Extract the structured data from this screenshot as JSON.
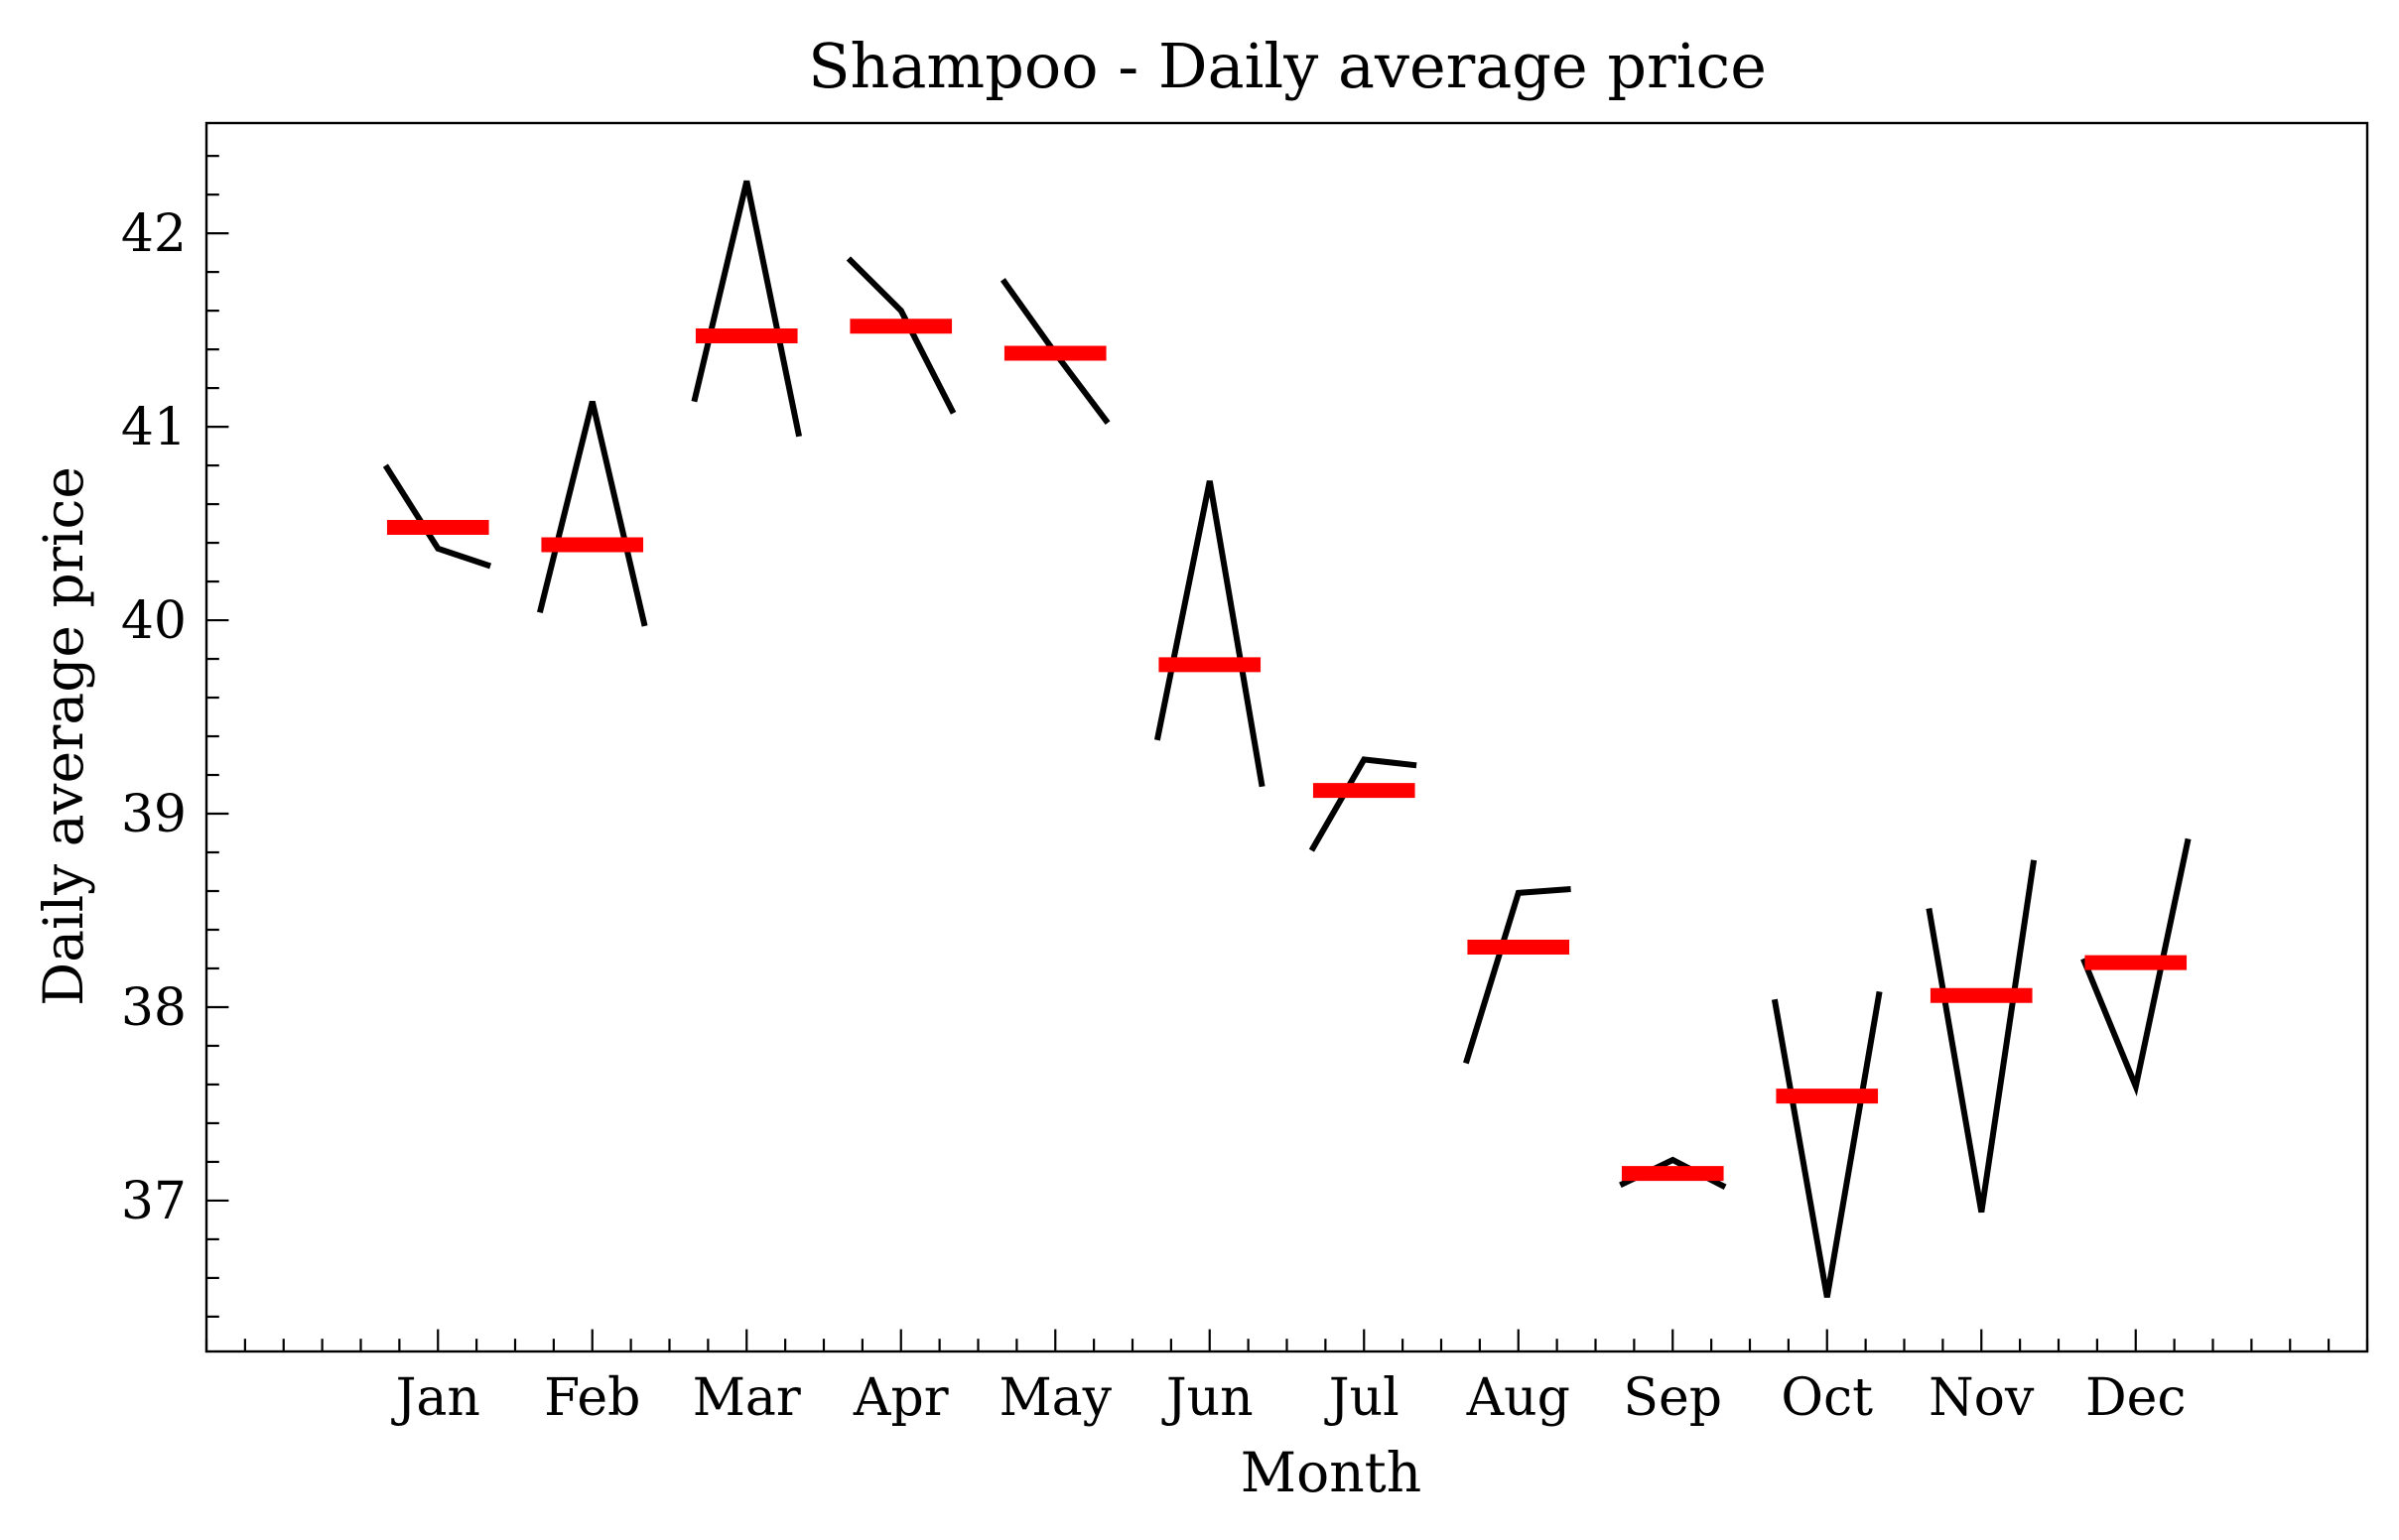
{
  "chart_data": {
    "type": "line",
    "title": "Shampoo - Daily average price",
    "xlabel": "Month",
    "ylabel": "Daily average price",
    "categories": [
      "Jan",
      "Feb",
      "Mar",
      "Apr",
      "May",
      "Jun",
      "Jul",
      "Aug",
      "Sep",
      "Oct",
      "Nov",
      "Dec"
    ],
    "yticks": [
      37,
      38,
      39,
      40,
      41,
      42
    ],
    "ylim": [
      36.22,
      42.57
    ],
    "xlim": [
      -1.5,
      12.5
    ],
    "grid": false,
    "series": [
      {
        "values": [
          [
            40.8,
            40.37,
            40.28
          ],
          [
            40.04,
            41.13,
            39.97
          ],
          [
            41.13,
            42.27,
            40.95
          ],
          [
            41.87,
            41.6,
            41.07
          ],
          [
            41.76,
            41.38,
            41.02
          ],
          [
            39.38,
            40.72,
            39.14
          ],
          [
            38.81,
            39.28,
            39.25
          ],
          [
            37.71,
            38.59,
            38.61
          ],
          [
            37.08,
            37.21,
            37.07
          ],
          [
            38.04,
            36.5,
            38.08
          ],
          [
            38.51,
            36.94,
            38.76
          ],
          [
            38.25,
            37.59,
            38.87
          ]
        ],
        "color": "#000000"
      },
      {
        "values": [
          40.48,
          40.39,
          41.47,
          41.52,
          41.38,
          39.77,
          39.12,
          38.31,
          37.14,
          37.54,
          38.06,
          38.23
        ],
        "color": "#ff0000"
      }
    ]
  }
}
